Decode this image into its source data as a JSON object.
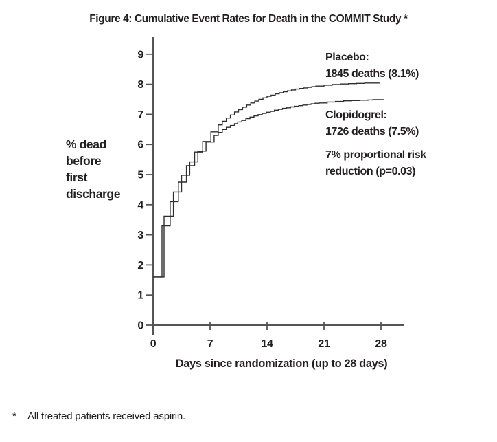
{
  "figure": {
    "title": "Figure 4: Cumulative Event Rates for Death in the COMMIT Study *",
    "footnote_marker": "*",
    "footnote_text": "All treated patients received aspirin."
  },
  "chart_data": {
    "type": "line",
    "line_style": "step",
    "title": "Figure 4: Cumulative Event Rates for Death in the COMMIT Study *",
    "xlabel": "Days since randomization (up to 28 days)",
    "ylabel": "% dead before first discharge",
    "ylabel_lines": [
      "% dead",
      "before",
      "first",
      "discharge"
    ],
    "xticks": [
      0,
      7,
      14,
      21,
      28
    ],
    "yticks": [
      0,
      1,
      2,
      3,
      4,
      5,
      6,
      7,
      8,
      9
    ],
    "xlim": [
      0,
      30.8
    ],
    "ylim": [
      0,
      9.55
    ],
    "grid": false,
    "legend_position": "inline-annotations",
    "annotations": [
      {
        "line1": "Placebo:",
        "line2": "1845 deaths (8.1%)"
      },
      {
        "line1": "Clopidogrel:",
        "line2": "1726 deaths (7.5%)"
      },
      {
        "line1": "7% proportional risk",
        "line2": "reduction (p=0.03)"
      }
    ],
    "series": [
      {
        "name": "Placebo",
        "final_value_pct": 8.1,
        "points": [
          [
            0,
            1.6
          ],
          [
            1.1,
            3.3
          ],
          [
            2.1,
            4.1
          ],
          [
            3.1,
            4.75
          ],
          [
            4.1,
            5.3
          ],
          [
            5.1,
            5.75
          ],
          [
            6.1,
            6.1
          ],
          [
            7.1,
            6.42
          ],
          [
            8,
            6.65
          ],
          [
            8.5,
            6.77
          ],
          [
            9,
            6.88
          ],
          [
            9.5,
            6.98
          ],
          [
            10,
            7.08
          ],
          [
            10.5,
            7.16
          ],
          [
            11,
            7.24
          ],
          [
            11.5,
            7.31
          ],
          [
            12,
            7.38
          ],
          [
            12.5,
            7.44
          ],
          [
            13,
            7.5
          ],
          [
            13.5,
            7.55
          ],
          [
            14,
            7.6
          ],
          [
            14.5,
            7.64
          ],
          [
            15,
            7.68
          ],
          [
            15.5,
            7.72
          ],
          [
            16,
            7.75
          ],
          [
            16.5,
            7.78
          ],
          [
            17,
            7.81
          ],
          [
            17.5,
            7.84
          ],
          [
            18,
            7.86
          ],
          [
            18.5,
            7.88
          ],
          [
            19,
            7.9
          ],
          [
            19.5,
            7.92
          ],
          [
            20,
            7.94
          ],
          [
            21,
            7.97
          ],
          [
            22,
            7.99
          ],
          [
            23,
            8.01
          ],
          [
            24,
            8.02
          ],
          [
            25,
            8.03
          ],
          [
            26,
            8.04
          ],
          [
            27.8,
            8.05
          ]
        ]
      },
      {
        "name": "Clopidogrel",
        "final_value_pct": 7.5,
        "points": [
          [
            0,
            1.6
          ],
          [
            1.35,
            3.62
          ],
          [
            2.5,
            4.42
          ],
          [
            3.5,
            4.98
          ],
          [
            4.5,
            5.42
          ],
          [
            5.5,
            5.78
          ],
          [
            6.5,
            6.08
          ],
          [
            7.5,
            6.3
          ],
          [
            8,
            6.4
          ],
          [
            8.5,
            6.5
          ],
          [
            9,
            6.57
          ],
          [
            9.5,
            6.63
          ],
          [
            10,
            6.69
          ],
          [
            10.4,
            6.75
          ],
          [
            10.9,
            6.8
          ],
          [
            11.4,
            6.86
          ],
          [
            11.9,
            6.91
          ],
          [
            12.4,
            6.95
          ],
          [
            12.9,
            6.99
          ],
          [
            13.4,
            7.03
          ],
          [
            13.9,
            7.07
          ],
          [
            14.4,
            7.1
          ],
          [
            14.9,
            7.14
          ],
          [
            15.4,
            7.17
          ],
          [
            15.9,
            7.2
          ],
          [
            16.4,
            7.22
          ],
          [
            16.9,
            7.25
          ],
          [
            17.4,
            7.27
          ],
          [
            17.9,
            7.29
          ],
          [
            18.4,
            7.31
          ],
          [
            18.9,
            7.33
          ],
          [
            19.4,
            7.35
          ],
          [
            19.9,
            7.37
          ],
          [
            20.4,
            7.38
          ],
          [
            21.4,
            7.41
          ],
          [
            22.4,
            7.43
          ],
          [
            23.4,
            7.45
          ],
          [
            24.4,
            7.46
          ],
          [
            25.4,
            7.47
          ],
          [
            26.4,
            7.48
          ],
          [
            27,
            7.49
          ],
          [
            28.3,
            7.5
          ]
        ]
      }
    ],
    "colors": {
      "background": "#ffffff",
      "text": "#231f20",
      "axis": "#555555",
      "curve": "#2e2e2e"
    }
  }
}
